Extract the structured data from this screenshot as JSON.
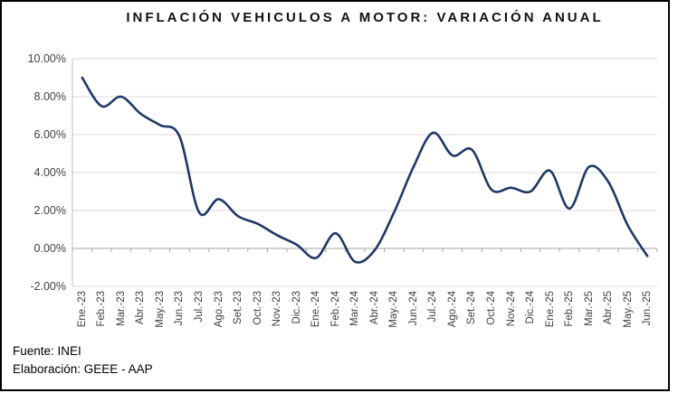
{
  "title": "INFLACIÓN VEHICULOS A MOTOR: VARIACIÓN ANUAL",
  "footer": {
    "line1": "Fuente: INEI",
    "line2": "Elaboración: GEEE - AAP"
  },
  "chart_data": {
    "type": "line",
    "title": "INFLACIÓN VEHICULOS A MOTOR: VARIACIÓN ANUAL",
    "categories": [
      "Ene.-23",
      "Feb.-23",
      "Mar.-23",
      "Abr.-23",
      "May.-23",
      "Jun.-23",
      "Jul.-23",
      "Ago.-23",
      "Set.-23",
      "Oct.-23",
      "Nov.-23",
      "Dic.-23",
      "Ene.-24",
      "Feb.-24",
      "Mar.-24",
      "Abr.-24",
      "May.-24",
      "Jun.-24",
      "Jul.-24",
      "Ago.-24",
      "Set.-24",
      "Oct.-24",
      "Nov.-24",
      "Dic.-24",
      "Ene.-25",
      "Feb.-25",
      "Mar.-25",
      "Abr.-25",
      "May.-25",
      "Jun.-25"
    ],
    "series": [
      {
        "name": "Variación anual",
        "values": [
          9.0,
          7.5,
          8.0,
          7.1,
          6.5,
          5.9,
          1.9,
          2.6,
          1.7,
          1.3,
          0.7,
          0.2,
          -0.5,
          0.8,
          -0.7,
          -0.1,
          1.9,
          4.3,
          6.1,
          4.9,
          5.2,
          3.1,
          3.2,
          3.0,
          4.1,
          2.1,
          4.3,
          3.5,
          1.2,
          -0.4
        ]
      }
    ],
    "y_tick_labels": [
      "10.00%",
      "8.00%",
      "6.00%",
      "4.00%",
      "2.00%",
      "0.00%",
      "-2.00%"
    ],
    "y_tick_values": [
      10,
      8,
      6,
      4,
      2,
      0,
      -2
    ],
    "ylim": [
      -2,
      10
    ],
    "xlabel": "",
    "ylabel": "",
    "legend": "none",
    "grid": "horizontal",
    "smooth_line": true,
    "x_label_rotation": -90,
    "colors": {
      "line": "#1f3864",
      "grid": "#d9d9d9",
      "axis": "#a6a6a6",
      "y_axis_border": "#bfbfbf",
      "labels": "#3f3f3f",
      "title": "#111111",
      "frame_border": "#000000",
      "background": "#ffffff"
    }
  }
}
